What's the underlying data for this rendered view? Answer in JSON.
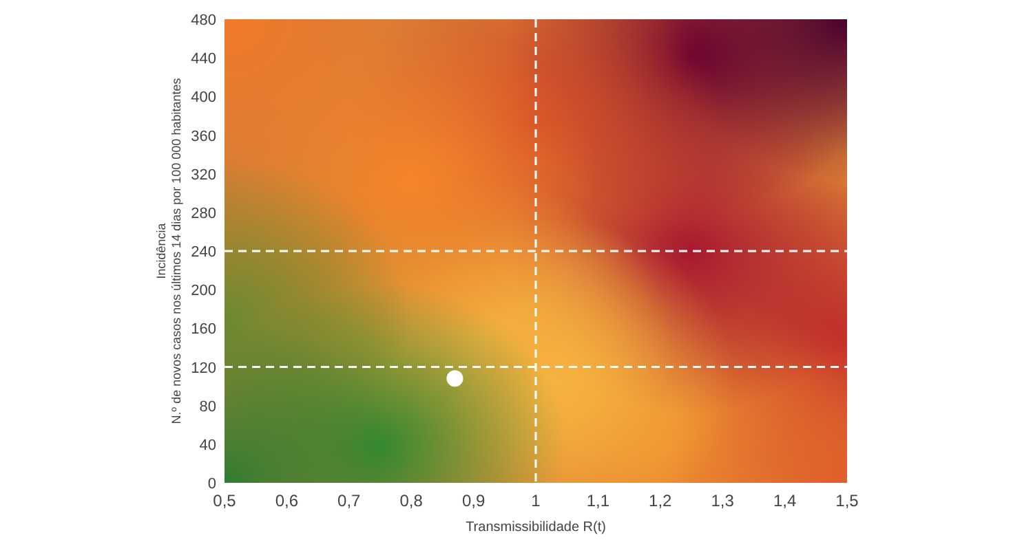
{
  "chart_data": {
    "type": "scatter",
    "xlabel": "Transmissibilidade R(t)",
    "ylabel": "Incidência\nN.º de novos casos nos últimos 14 dias por 100 000 habitantes",
    "x": [
      0.87
    ],
    "values": [
      108
    ],
    "color": "#ffffff",
    "marker": "circle",
    "xlim": [
      0.5,
      1.5
    ],
    "xticks": [
      {
        "value": 0.5,
        "label": "0,5"
      },
      {
        "value": 0.6,
        "label": "0,6"
      },
      {
        "value": 0.7,
        "label": "0,7"
      },
      {
        "value": 0.8,
        "label": "0,8"
      },
      {
        "value": 0.9,
        "label": "0,9"
      },
      {
        "value": 1,
        "label": "1"
      },
      {
        "value": 1.1,
        "label": "1,1"
      },
      {
        "value": 1.2,
        "label": "1,2"
      },
      {
        "value": 1.3,
        "label": "1,3"
      },
      {
        "value": 1.4,
        "label": "1,4"
      },
      {
        "value": 1.5,
        "label": "1,5"
      }
    ],
    "ylim": [
      0,
      480
    ],
    "yticks": [
      0,
      40,
      80,
      120,
      160,
      200,
      240,
      280,
      320,
      360,
      400,
      440,
      480
    ],
    "ref_lines": [
      {
        "axis": "x",
        "value": 1,
        "color": "#ffffff",
        "line_style": "dashed"
      },
      {
        "axis": "y",
        "value": 120,
        "color": "#ffffff",
        "line_style": "dashed"
      },
      {
        "axis": "y",
        "value": 240,
        "color": "#ffffff",
        "line_style": "dashed"
      }
    ],
    "grid": false
  }
}
